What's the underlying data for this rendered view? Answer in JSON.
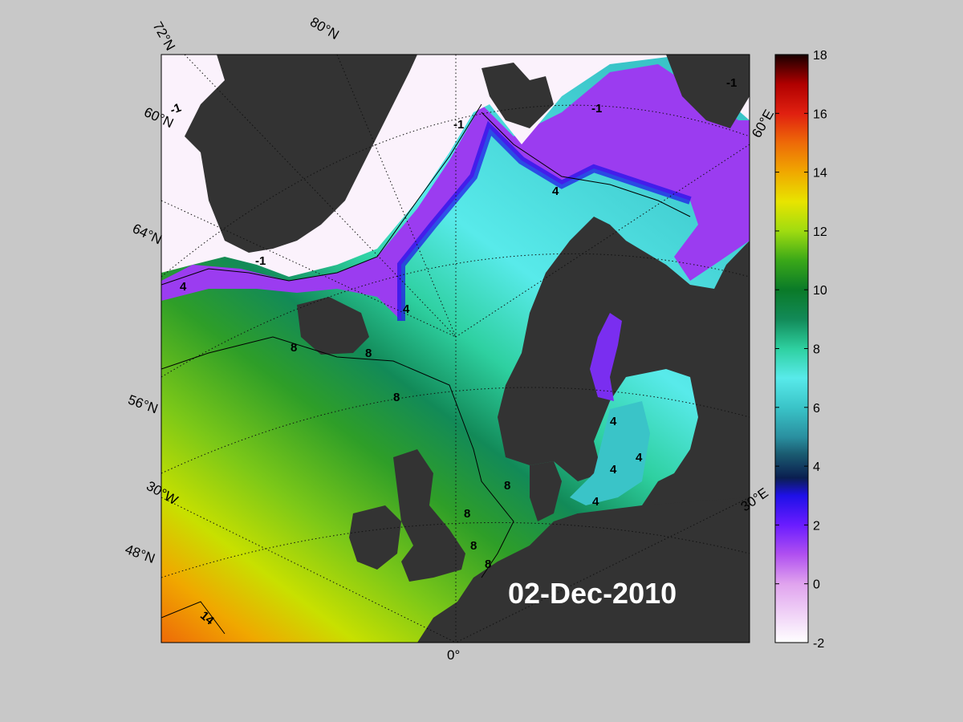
{
  "map": {
    "date": "02-Dec-2010",
    "lat_labels": [
      "72°N",
      "80°N",
      "60°N",
      "64°N",
      "56°N",
      "48°N"
    ],
    "lon_labels": [
      "0°",
      "30°W",
      "30°E",
      "60°E"
    ],
    "contour_labels": [
      "-1",
      "-1",
      "-1",
      "-1",
      "-1",
      "4",
      "4",
      "4",
      "4",
      "8",
      "8",
      "8",
      "8",
      "8",
      "8",
      "8",
      "4",
      "4",
      "4",
      "14"
    ],
    "colors": {
      "land": "#333333",
      "background": "#c8c8c8",
      "ice": "#fbf2fc"
    }
  },
  "colorbar": {
    "min": -2,
    "max": 18,
    "tick_labels": [
      "18",
      "16",
      "14",
      "12",
      "10",
      "8",
      "6",
      "4",
      "2",
      "0",
      "-2"
    ],
    "colormap": [
      {
        "value": -2,
        "color": "#ffffff"
      },
      {
        "value": 0,
        "color": "#e0a3ee"
      },
      {
        "value": 1,
        "color": "#b050f0"
      },
      {
        "value": 2,
        "color": "#6a1cff"
      },
      {
        "value": 3,
        "color": "#1e10e8"
      },
      {
        "value": 3.6,
        "color": "#0a1e50"
      },
      {
        "value": 4.4,
        "color": "#1a5a70"
      },
      {
        "value": 5,
        "color": "#2a90a0"
      },
      {
        "value": 6,
        "color": "#3ac4c8"
      },
      {
        "value": 7,
        "color": "#58eaea"
      },
      {
        "value": 8,
        "color": "#2ed0a0"
      },
      {
        "value": 9,
        "color": "#128a58"
      },
      {
        "value": 10,
        "color": "#0a7a28"
      },
      {
        "value": 11,
        "color": "#3aa818"
      },
      {
        "value": 12,
        "color": "#a0dc10"
      },
      {
        "value": 13,
        "color": "#e8e400"
      },
      {
        "value": 14,
        "color": "#f0a800"
      },
      {
        "value": 15,
        "color": "#ee6a08"
      },
      {
        "value": 16,
        "color": "#e02010"
      },
      {
        "value": 17,
        "color": "#b00000"
      },
      {
        "value": 18,
        "color": "#180000"
      }
    ]
  }
}
